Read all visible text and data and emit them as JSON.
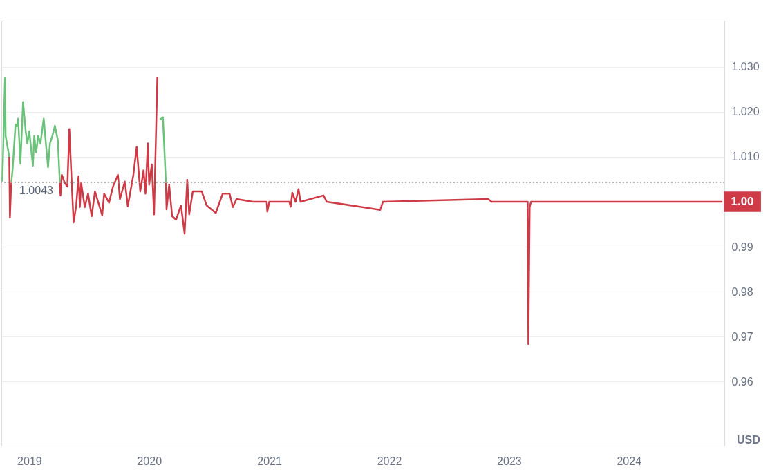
{
  "chart_data": {
    "type": "line",
    "x": [
      "2018-10-11",
      "2018-10-19",
      "2018-10-21",
      "2018-11-01",
      "2018-11-03",
      "2018-11-07",
      "2018-11-11",
      "2018-11-20",
      "2018-11-24",
      "2018-11-28",
      "2018-12-05",
      "2018-12-13",
      "2018-12-21",
      "2018-12-26",
      "2019-01-01",
      "2019-01-12",
      "2019-01-16",
      "2019-01-22",
      "2019-01-28",
      "2019-02-04",
      "2019-02-14",
      "2019-02-21",
      "2019-02-27",
      "2019-03-05",
      "2019-03-12",
      "2019-03-20",
      "2019-03-29",
      "2019-04-04",
      "2019-04-06",
      "2019-04-10",
      "2019-04-19",
      "2019-04-27",
      "2019-05-03",
      "2019-05-10",
      "2019-05-16",
      "2019-05-24",
      "2019-05-31",
      "2019-06-04",
      "2019-06-08",
      "2019-06-19",
      "2019-06-29",
      "2019-07-10",
      "2019-07-20",
      "2019-08-11",
      "2019-08-17",
      "2019-09-01",
      "2019-09-13",
      "2019-09-28",
      "2019-10-04",
      "2019-10-19",
      "2019-10-28",
      "2019-11-14",
      "2019-11-24",
      "2019-12-05",
      "2019-12-15",
      "2019-12-21",
      "2019-12-28",
      "2020-01-01",
      "2020-01-09",
      "2020-01-16",
      "2020-01-26",
      "2020-02-04",
      "2020-02-12",
      "2020-02-21",
      "2020-02-23",
      "2020-03-02",
      "2020-03-11",
      "2020-03-23",
      "2020-04-07",
      "2020-04-18",
      "2020-04-26",
      "2020-05-02",
      "2020-05-13",
      "2020-06-09",
      "2020-06-24",
      "2020-07-22",
      "2020-08-12",
      "2020-09-02",
      "2020-09-12",
      "2020-09-23",
      "2020-11-12",
      "2020-12-10",
      "2020-12-24",
      "2020-12-26",
      "2021-01-01",
      "2021-03-03",
      "2021-03-07",
      "2021-03-12",
      "2021-03-22",
      "2021-03-31",
      "2021-04-06",
      "2021-06-15",
      "2021-06-25",
      "2021-12-05",
      "2021-12-13",
      "2022-10-30",
      "2022-11-09",
      "2023-02-27",
      "2023-03-01",
      "2023-03-05",
      "2023-03-09",
      "2024-10-12"
    ],
    "series": [
      {
        "color": "#6bc27a",
        "values": [
          1.0045,
          1.0275,
          1.0146,
          1.01,
          null,
          1.0042,
          1.007,
          1.0172,
          1.0168,
          1.0185,
          1.0085,
          1.0222,
          1.0157,
          1.013,
          1.0157,
          1.008,
          1.0146,
          1.011,
          1.0146,
          1.013,
          1.0185,
          1.0126,
          1.0077,
          1.013,
          1.0146,
          1.0169,
          1.0137,
          1.0042,
          null,
          null,
          null,
          null,
          null,
          null,
          null,
          null,
          null,
          null,
          null,
          null,
          null,
          null,
          null,
          null,
          null,
          null,
          null,
          null,
          null,
          null,
          null,
          null,
          null,
          null,
          null,
          null,
          null,
          null,
          null,
          null,
          null,
          1.0183,
          1.0188,
          1.0042,
          null,
          null,
          null,
          null,
          null,
          null,
          null,
          null,
          null,
          null,
          null,
          null,
          null,
          null,
          null,
          null,
          null,
          null,
          null,
          null,
          null,
          null,
          null,
          null,
          null,
          null,
          null,
          null,
          null,
          null,
          null,
          null,
          null,
          null,
          null,
          null,
          null,
          null
        ]
      },
      {
        "color": "#cf3a47",
        "values": [
          null,
          null,
          null,
          1.01,
          0.9965,
          1.0042,
          null,
          null,
          null,
          null,
          null,
          null,
          null,
          null,
          null,
          null,
          null,
          null,
          null,
          null,
          null,
          null,
          null,
          null,
          null,
          null,
          null,
          1.0042,
          1.0014,
          1.006,
          1.0042,
          1.0034,
          1.0162,
          1.0045,
          0.9954,
          0.9992,
          1.0057,
          0.9988,
          1.0042,
          0.9988,
          1.0018,
          0.9968,
          1.0023,
          0.997,
          1.0018,
          0.9998,
          1.0034,
          1.006,
          1.0006,
          1.0045,
          0.999,
          1.006,
          1.0122,
          1.0023,
          1.007,
          1.0018,
          1.013,
          1.0038,
          1.0083,
          0.9972,
          1.0277,
          null,
          null,
          1.0042,
          0.9983,
          1.0038,
          0.9968,
          0.996,
          0.9992,
          0.9929,
          1.0049,
          0.9972,
          1.0023,
          1.0023,
          0.9992,
          0.9975,
          1.0018,
          1.0018,
          0.9988,
          1.0006,
          1.0,
          1.0,
          1.0,
          0.9978,
          1.0,
          1.0,
          0.9989,
          1.002,
          1.0,
          1.0028,
          1.0,
          1.0014,
          1.0,
          0.9982,
          1.0,
          1.0006,
          1.0,
          1.0,
          0.9683,
          0.9988,
          1.0,
          1.0
        ]
      }
    ],
    "xlim": [
      "2018-10-08",
      "2024-10-18"
    ],
    "xticks": [
      "2019",
      "2020",
      "2021",
      "2022",
      "2023",
      "2024"
    ],
    "ylim": [
      0.9457,
      1.0403
    ],
    "yticks": [
      {
        "value": 1.03,
        "label": "1.030"
      },
      {
        "value": 1.02,
        "label": "1.020"
      },
      {
        "value": 1.01,
        "label": "1.010"
      },
      0.99,
      0.98,
      0.97,
      0.96
    ],
    "grid": "y",
    "ref_lines": [
      {
        "axis": "y",
        "value": 1.0043,
        "label": "1.0043",
        "color": "#999999",
        "line_style": "dotted"
      }
    ],
    "annotations": [
      {
        "text": "1.00",
        "x": "2024-10-12",
        "y": 1.0
      },
      "USD"
    ],
    "line_style": "solid",
    "legend": false
  }
}
